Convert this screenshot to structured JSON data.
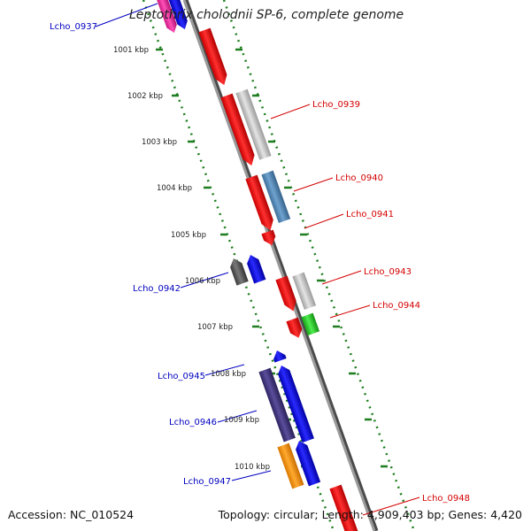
{
  "title": "Leptothrix cholodnii SP-6, complete genome",
  "footer": {
    "accession": "Accession: NC_010524",
    "topology": "Topology: circular; Length: 4,909,403 bp; Genes: 4,420"
  },
  "colors": {
    "backbone": "#808080",
    "tick": "#1e7d1e",
    "label_left": "#0000c0",
    "label_right": "#d40000"
  },
  "scale_ticks": [
    {
      "label": "1001 kbp",
      "kbp": 1001
    },
    {
      "label": "1002 kbp",
      "kbp": 1002
    },
    {
      "label": "1003 kbp",
      "kbp": 1003
    },
    {
      "label": "1004 kbp",
      "kbp": 1004
    },
    {
      "label": "1005 kbp",
      "kbp": 1005
    },
    {
      "label": "1006 kbp",
      "kbp": 1006
    },
    {
      "label": "1007 kbp",
      "kbp": 1007
    },
    {
      "label": "1008 kbp",
      "kbp": 1008
    },
    {
      "label": "1009 kbp",
      "kbp": 1009
    },
    {
      "label": "1010 kbp",
      "kbp": 1010
    }
  ],
  "gene_labels": [
    {
      "text": "Lcho_0937",
      "side": "left"
    },
    {
      "text": "Lcho_0939",
      "side": "right"
    },
    {
      "text": "Lcho_0940",
      "side": "right"
    },
    {
      "text": "Lcho_0941",
      "side": "right"
    },
    {
      "text": "Lcho_0942",
      "side": "left"
    },
    {
      "text": "Lcho_0943",
      "side": "right"
    },
    {
      "text": "Lcho_0944",
      "side": "right"
    },
    {
      "text": "Lcho_0945",
      "side": "left"
    },
    {
      "text": "Lcho_0946",
      "side": "left"
    },
    {
      "text": "Lcho_0947",
      "side": "left"
    },
    {
      "text": "Lcho_0948",
      "side": "right"
    }
  ]
}
